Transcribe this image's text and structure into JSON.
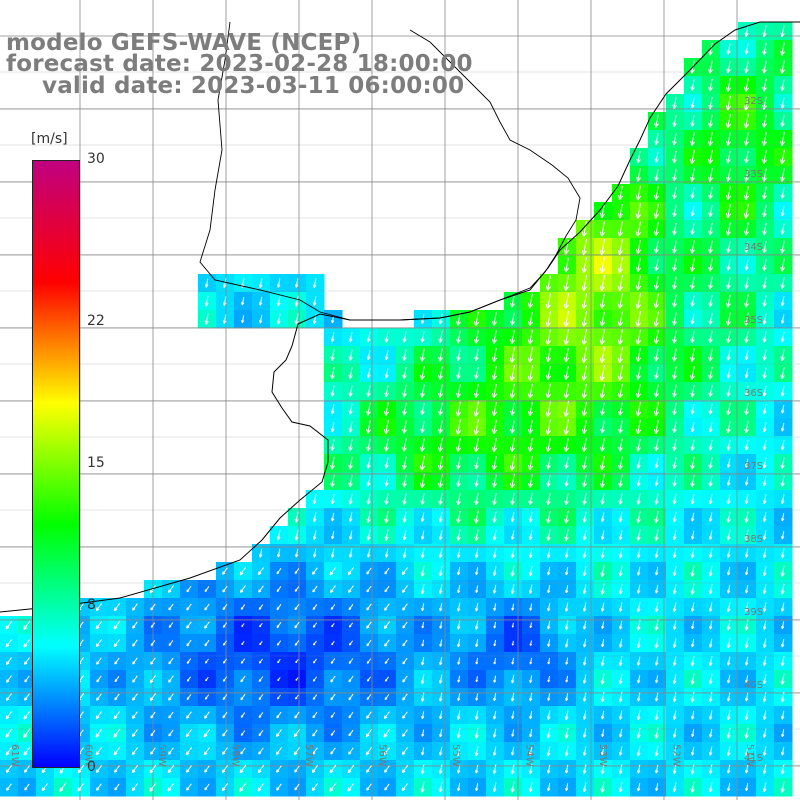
{
  "title": {
    "line1": "modelo GEFS-WAVE (NCEP)",
    "line2": "forecast date: 2023-02-28 18:00:00",
    "line3": "valid date: 2023-03-11 06:00:00"
  },
  "colorbar": {
    "unit": "[m/s]",
    "min": 0,
    "max": 30,
    "ticks": [
      {
        "label": "30",
        "value": 30
      },
      {
        "label": "22",
        "value": 22
      },
      {
        "label": "15",
        "value": 15
      },
      {
        "label": "8",
        "value": 8
      },
      {
        "label": "0",
        "value": 0
      }
    ],
    "stops": [
      "#0000ff",
      "#00ffff",
      "#00ff00",
      "#ffff00",
      "#ff0000",
      "#c00080"
    ]
  },
  "lat_labels": [
    "32S",
    "33S",
    "34S",
    "35S",
    "36S",
    "37S",
    "38S",
    "39S",
    "40S",
    "41S"
  ],
  "lon_labels": [
    "61W",
    "60W",
    "59W",
    "58W",
    "57W",
    "56W",
    "55W",
    "54W",
    "53W",
    "52W",
    "51W"
  ],
  "colors": {
    "land": "#ffffff",
    "grid": "#888888",
    "coast": "#000000",
    "arrow": "#ffffff",
    "title": "#7d7d7d"
  }
}
